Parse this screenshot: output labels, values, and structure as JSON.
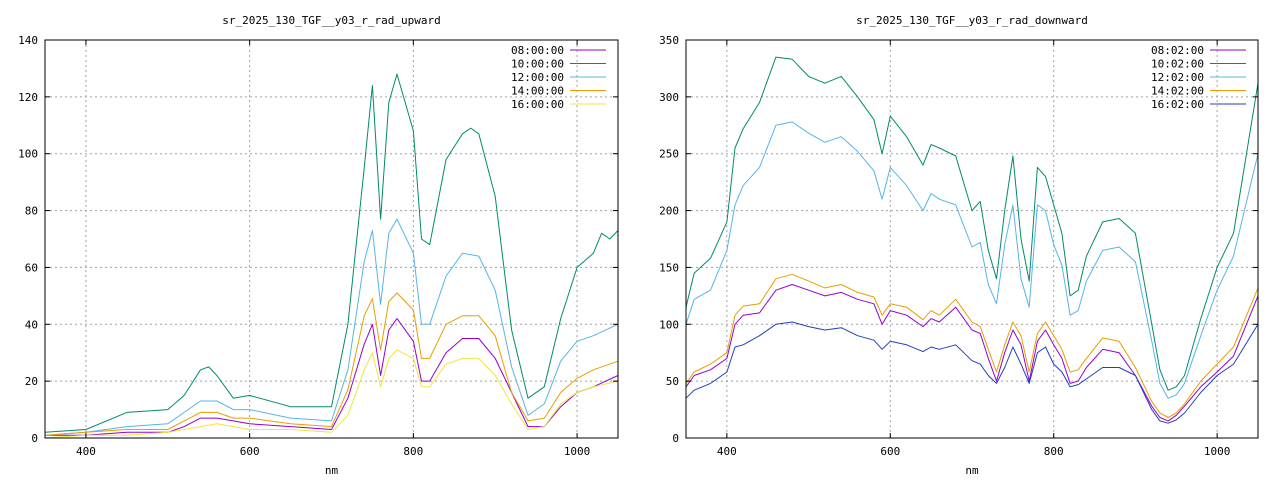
{
  "chart_data": [
    {
      "type": "line",
      "title": "sr_2025_130_TGF__y03_r_rad_upward",
      "xlabel": "nm",
      "ylabel": "",
      "xlim": [
        350,
        1050
      ],
      "ylim": [
        0,
        140
      ],
      "xticks": [
        400,
        600,
        800,
        1000
      ],
      "yticks": [
        0,
        20,
        40,
        60,
        80,
        100,
        120,
        140
      ],
      "grid": true,
      "legend": "top-right",
      "series": [
        {
          "name": "08:00:00",
          "color": "#9400d3",
          "x": [
            350,
            400,
            450,
            500,
            520,
            540,
            560,
            580,
            600,
            650,
            700,
            720,
            740,
            750,
            760,
            770,
            780,
            800,
            810,
            820,
            840,
            860,
            880,
            900,
            920,
            940,
            960,
            980,
            1000,
            1020,
            1050
          ],
          "y": [
            1,
            1,
            2,
            2,
            4,
            7,
            7,
            6,
            5,
            4,
            3,
            14,
            33,
            40,
            22,
            38,
            42,
            34,
            20,
            20,
            30,
            35,
            35,
            28,
            16,
            4,
            4,
            11,
            16,
            18,
            22
          ]
        },
        {
          "name": "10:00:00",
          "color": "#008b6b",
          "x": [
            350,
            400,
            450,
            500,
            520,
            540,
            550,
            560,
            580,
            600,
            650,
            700,
            720,
            740,
            750,
            760,
            770,
            780,
            800,
            810,
            820,
            840,
            860,
            870,
            880,
            900,
            920,
            940,
            960,
            980,
            1000,
            1020,
            1030,
            1040,
            1050
          ],
          "y": [
            2,
            3,
            9,
            10,
            15,
            24,
            25,
            22,
            14,
            15,
            11,
            11,
            40,
            95,
            124,
            77,
            118,
            128,
            108,
            70,
            68,
            98,
            107,
            109,
            107,
            85,
            38,
            14,
            18,
            42,
            60,
            65,
            72,
            70,
            73
          ]
        },
        {
          "name": "12:00:00",
          "color": "#56b4e9",
          "x": [
            350,
            400,
            450,
            500,
            520,
            540,
            560,
            580,
            600,
            650,
            700,
            720,
            740,
            750,
            760,
            770,
            780,
            800,
            810,
            820,
            840,
            860,
            880,
            900,
            920,
            940,
            960,
            980,
            1000,
            1020,
            1050
          ],
          "y": [
            1,
            2,
            4,
            5,
            9,
            13,
            13,
            10,
            10,
            7,
            6,
            24,
            62,
            73,
            47,
            72,
            77,
            65,
            40,
            40,
            57,
            65,
            64,
            52,
            25,
            8,
            12,
            27,
            34,
            36,
            40
          ]
        },
        {
          "name": "14:00:00",
          "color": "#e69f00",
          "x": [
            350,
            400,
            450,
            500,
            520,
            540,
            560,
            580,
            600,
            650,
            700,
            720,
            740,
            750,
            760,
            770,
            780,
            800,
            810,
            820,
            840,
            860,
            880,
            900,
            920,
            940,
            960,
            980,
            1000,
            1020,
            1050
          ],
          "y": [
            1,
            2,
            3,
            3,
            6,
            9,
            9,
            7,
            7,
            5,
            4,
            17,
            43,
            49,
            31,
            48,
            51,
            45,
            28,
            28,
            40,
            43,
            43,
            36,
            16,
            6,
            7,
            16,
            21,
            24,
            27
          ]
        },
        {
          "name": "16:00:00",
          "color": "#f0e442",
          "x": [
            350,
            400,
            450,
            500,
            520,
            540,
            560,
            580,
            600,
            650,
            700,
            720,
            740,
            750,
            760,
            770,
            780,
            800,
            810,
            820,
            840,
            860,
            880,
            900,
            920,
            940,
            960,
            980,
            1000,
            1020,
            1050
          ],
          "y": [
            0,
            1,
            1,
            2,
            3,
            4,
            5,
            4,
            3,
            3,
            2,
            8,
            24,
            30,
            18,
            28,
            31,
            28,
            18,
            18,
            26,
            28,
            28,
            22,
            12,
            3,
            4,
            12,
            16,
            18,
            20
          ]
        }
      ]
    },
    {
      "type": "line",
      "title": "sr_2025_130_TGF__y03_r_rad_downward",
      "xlabel": "nm",
      "ylabel": "",
      "xlim": [
        350,
        1050
      ],
      "ylim": [
        0,
        350
      ],
      "xticks": [
        400,
        600,
        800,
        1000
      ],
      "yticks": [
        0,
        50,
        100,
        150,
        200,
        250,
        300,
        350
      ],
      "grid": true,
      "legend": "top-right",
      "series": [
        {
          "name": "08:02:00",
          "color": "#9400d3",
          "x": [
            350,
            360,
            380,
            400,
            410,
            420,
            440,
            460,
            480,
            500,
            520,
            540,
            560,
            580,
            590,
            600,
            620,
            640,
            650,
            660,
            680,
            700,
            710,
            720,
            730,
            740,
            750,
            760,
            770,
            780,
            790,
            800,
            810,
            820,
            830,
            840,
            860,
            880,
            900,
            920,
            930,
            940,
            950,
            960,
            980,
            1000,
            1020,
            1050
          ],
          "y": [
            45,
            55,
            60,
            70,
            100,
            108,
            110,
            130,
            135,
            130,
            125,
            128,
            122,
            118,
            100,
            112,
            108,
            98,
            105,
            102,
            115,
            95,
            92,
            70,
            50,
            75,
            95,
            82,
            50,
            85,
            95,
            82,
            70,
            48,
            50,
            62,
            78,
            75,
            55,
            28,
            18,
            15,
            20,
            28,
            45,
            58,
            72,
            125
          ]
        },
        {
          "name": "10:02:00",
          "color": "#008b6b",
          "x": [
            350,
            360,
            380,
            400,
            410,
            420,
            440,
            460,
            480,
            500,
            520,
            540,
            560,
            580,
            590,
            600,
            620,
            640,
            650,
            660,
            680,
            700,
            710,
            720,
            730,
            740,
            750,
            760,
            770,
            780,
            790,
            800,
            810,
            820,
            830,
            840,
            860,
            880,
            900,
            920,
            930,
            940,
            950,
            960,
            980,
            1000,
            1020,
            1050
          ],
          "y": [
            115,
            145,
            158,
            190,
            255,
            272,
            295,
            335,
            333,
            318,
            312,
            318,
            300,
            280,
            250,
            283,
            265,
            240,
            258,
            255,
            248,
            200,
            208,
            165,
            140,
            200,
            248,
            175,
            138,
            238,
            230,
            205,
            180,
            125,
            130,
            160,
            190,
            193,
            180,
            100,
            60,
            42,
            45,
            55,
            105,
            150,
            180,
            312
          ]
        },
        {
          "name": "12:02:00",
          "color": "#56b4e9",
          "x": [
            350,
            360,
            380,
            400,
            410,
            420,
            440,
            460,
            480,
            500,
            520,
            540,
            560,
            580,
            590,
            600,
            620,
            640,
            650,
            660,
            680,
            700,
            710,
            720,
            730,
            740,
            750,
            760,
            770,
            780,
            790,
            800,
            810,
            820,
            830,
            840,
            860,
            880,
            900,
            920,
            930,
            940,
            950,
            960,
            980,
            1000,
            1020,
            1050
          ],
          "y": [
            100,
            122,
            130,
            165,
            205,
            222,
            238,
            275,
            278,
            268,
            260,
            265,
            252,
            235,
            210,
            238,
            222,
            200,
            215,
            210,
            205,
            168,
            172,
            135,
            118,
            170,
            205,
            140,
            115,
            205,
            200,
            170,
            152,
            108,
            112,
            138,
            165,
            168,
            155,
            85,
            48,
            35,
            38,
            48,
            90,
            130,
            160,
            250
          ]
        },
        {
          "name": "14:02:00",
          "color": "#e69f00",
          "x": [
            350,
            360,
            380,
            400,
            410,
            420,
            440,
            460,
            480,
            500,
            520,
            540,
            560,
            580,
            590,
            600,
            620,
            640,
            650,
            660,
            680,
            700,
            710,
            720,
            730,
            740,
            750,
            760,
            770,
            780,
            790,
            800,
            810,
            820,
            830,
            840,
            860,
            880,
            900,
            920,
            930,
            940,
            950,
            960,
            980,
            1000,
            1020,
            1050
          ],
          "y": [
            48,
            58,
            65,
            75,
            108,
            116,
            118,
            140,
            144,
            138,
            132,
            135,
            128,
            124,
            108,
            118,
            115,
            104,
            112,
            108,
            122,
            102,
            98,
            78,
            58,
            82,
            102,
            90,
            58,
            92,
            102,
            90,
            78,
            58,
            60,
            70,
            88,
            85,
            62,
            32,
            22,
            18,
            22,
            30,
            50,
            65,
            80,
            132
          ]
        },
        {
          "name": "16:02:00",
          "color": "#1f3fbf",
          "x": [
            350,
            360,
            380,
            400,
            410,
            420,
            440,
            460,
            480,
            500,
            520,
            540,
            560,
            580,
            590,
            600,
            620,
            640,
            650,
            660,
            680,
            700,
            710,
            720,
            730,
            740,
            750,
            760,
            770,
            780,
            790,
            800,
            810,
            820,
            830,
            840,
            860,
            880,
            900,
            920,
            930,
            940,
            950,
            960,
            980,
            1000,
            1020,
            1050
          ],
          "y": [
            35,
            42,
            48,
            58,
            80,
            82,
            90,
            100,
            102,
            98,
            95,
            97,
            90,
            86,
            78,
            85,
            82,
            76,
            80,
            78,
            82,
            68,
            65,
            55,
            48,
            62,
            80,
            65,
            48,
            75,
            80,
            65,
            58,
            45,
            47,
            52,
            62,
            62,
            55,
            25,
            15,
            13,
            16,
            22,
            40,
            55,
            65,
            100
          ]
        }
      ]
    }
  ]
}
